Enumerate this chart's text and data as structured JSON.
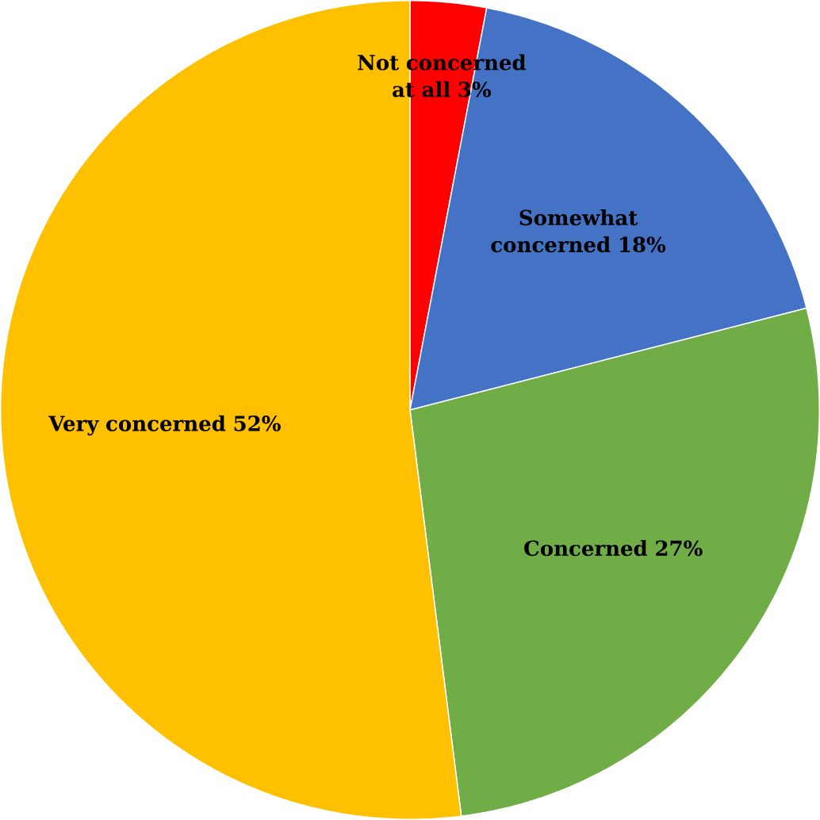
{
  "chart_data": {
    "type": "pie",
    "categories": [
      "Not concerned at all",
      "Somewhat concerned",
      "Concerned",
      "Very concerned"
    ],
    "values": [
      3,
      18,
      27,
      52
    ],
    "value_labels": [
      "3%",
      "18%",
      "27%",
      "52%"
    ],
    "colors": [
      "#ff0000",
      "#4472c4",
      "#70ad47",
      "#ffc000"
    ]
  }
}
